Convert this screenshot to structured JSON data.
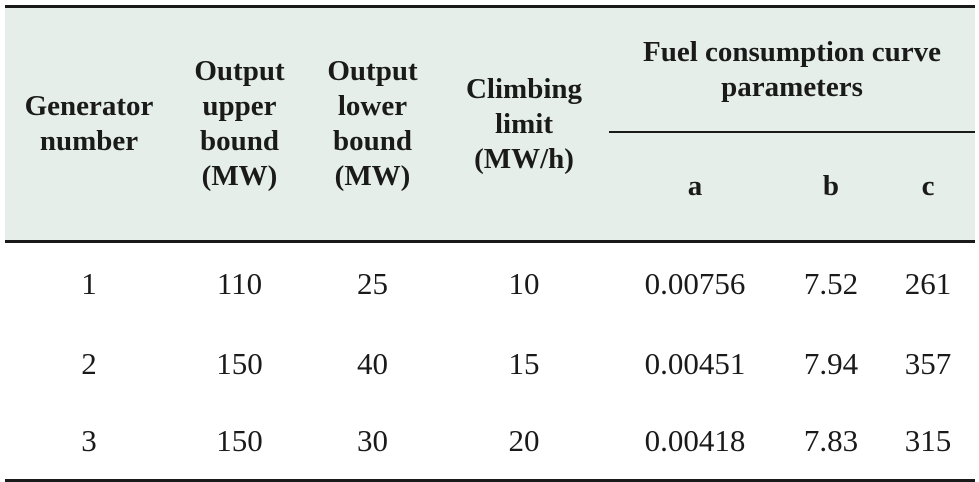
{
  "table": {
    "headers": {
      "generator_number": "Generator number",
      "output_upper": "Output upper bound (MW)",
      "output_lower": "Output lower bound (MW)",
      "climbing_limit": "Climbing limit (MW/h)",
      "fuel_group": "Fuel consumption curve parameters",
      "a": "a",
      "b": "b",
      "c": "c"
    },
    "rows": [
      {
        "generator": "1",
        "upper": "110",
        "lower": "25",
        "climb": "10",
        "a": "0.00756",
        "b": "7.52",
        "c": "261"
      },
      {
        "generator": "2",
        "upper": "150",
        "lower": "40",
        "climb": "15",
        "a": "0.00451",
        "b": "7.94",
        "c": "357"
      },
      {
        "generator": "3",
        "upper": "150",
        "lower": "30",
        "climb": "20",
        "a": "0.00418",
        "b": "7.83",
        "c": "315"
      }
    ]
  }
}
